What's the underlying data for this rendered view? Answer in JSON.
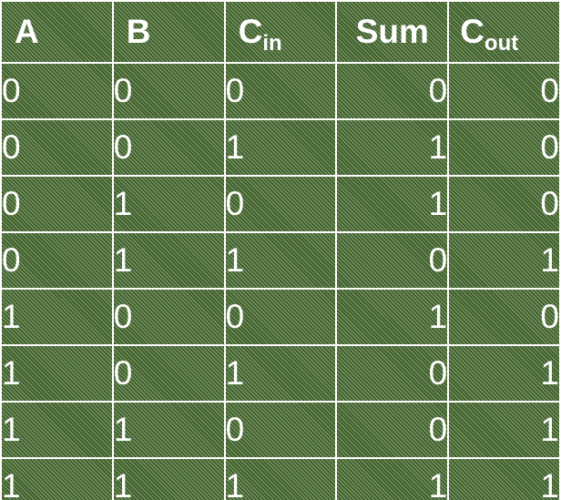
{
  "headers": [
    {
      "main": "A",
      "sub": ""
    },
    {
      "main": "B",
      "sub": ""
    },
    {
      "main": "C",
      "sub": "in"
    },
    {
      "main": "Sum",
      "sub": ""
    },
    {
      "main": "C",
      "sub": "out"
    }
  ],
  "rows": [
    [
      "0",
      "0",
      "0",
      "0",
      "0"
    ],
    [
      "0",
      "0",
      "1",
      "1",
      "0"
    ],
    [
      "0",
      "1",
      "0",
      "1",
      "0"
    ],
    [
      "0",
      "1",
      "1",
      "0",
      "1"
    ],
    [
      "1",
      "0",
      "0",
      "1",
      "0"
    ],
    [
      "1",
      "0",
      "1",
      "0",
      "1"
    ],
    [
      "1",
      "1",
      "0",
      "0",
      "1"
    ],
    [
      "1",
      "1",
      "1",
      "1",
      "1"
    ]
  ],
  "colors": {
    "background": "#3f5f2c",
    "stripe": "#bed2aa",
    "grid": "#ffffff",
    "text": "#ffffff"
  }
}
